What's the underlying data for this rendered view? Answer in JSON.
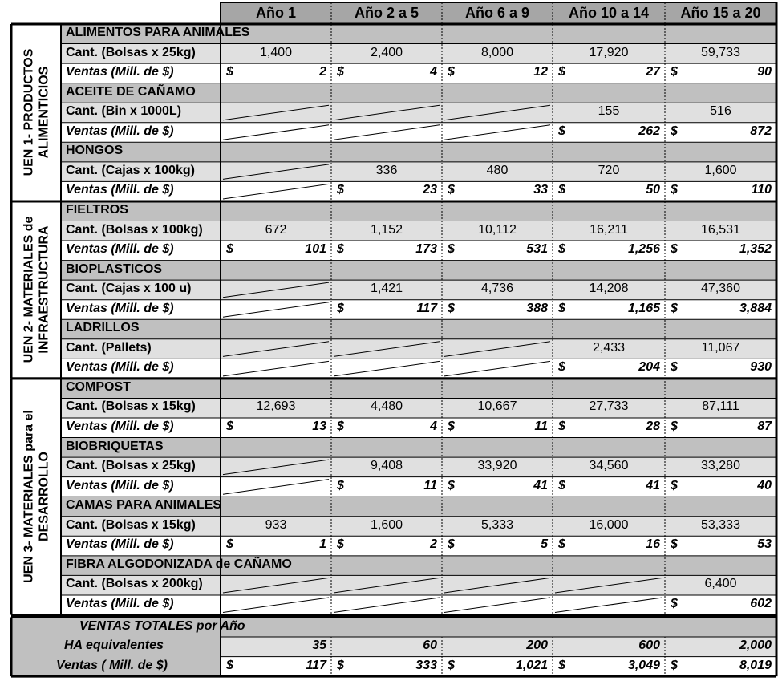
{
  "columns": [
    "Año 1",
    "Año 2 a 5",
    "Año 6 a 9",
    "Año 10 a 14",
    "Año 15 a 20"
  ],
  "currency_symbol": "$",
  "uens": [
    {
      "name_lines": [
        "UEN 1- PRODUCTOS",
        "ALIMENTICIOS"
      ],
      "products": [
        {
          "name": "ALIMENTOS PARA ANIMALES",
          "qty_label": "Cant. (Bolsas x 25kg)",
          "sales_label": "Ventas (Mill. de $)",
          "qty": [
            "1,400",
            "2,400",
            "8,000",
            "17,920",
            "59,733"
          ],
          "sales": [
            "2",
            "4",
            "12",
            "27",
            "90"
          ]
        },
        {
          "name": "ACEITE DE CAÑAMO",
          "qty_label": "Cant. (Bin x 1000L)",
          "sales_label": "Ventas (Mill. de $)",
          "qty": [
            null,
            null,
            null,
            "155",
            "516"
          ],
          "sales": [
            null,
            null,
            null,
            "262",
            "872"
          ]
        },
        {
          "name": "HONGOS",
          "qty_label": "Cant. (Cajas x 100kg)",
          "sales_label": "Ventas (Mill. de $)",
          "qty": [
            null,
            "336",
            "480",
            "720",
            "1,600"
          ],
          "sales": [
            null,
            "23",
            "33",
            "50",
            "110"
          ]
        }
      ]
    },
    {
      "name_lines": [
        "UEN 2- MATERIALES de",
        "INFRAESTRUCTURA"
      ],
      "products": [
        {
          "name": "FIELTROS",
          "qty_label": "Cant. (Bolsas x 100kg)",
          "sales_label": "Ventas (Mill. de $)",
          "qty": [
            "672",
            "1,152",
            "10,112",
            "16,211",
            "16,531"
          ],
          "sales": [
            "101",
            "173",
            "531",
            "1,256",
            "1,352"
          ]
        },
        {
          "name": "BIOPLASTICOS",
          "qty_label": "Cant. (Cajas x 100 u)",
          "sales_label": "Ventas (Mill. de $)",
          "qty": [
            null,
            "1,421",
            "4,736",
            "14,208",
            "47,360"
          ],
          "sales": [
            null,
            "117",
            "388",
            "1,165",
            "3,884"
          ]
        },
        {
          "name": "LADRILLOS",
          "qty_label": "Cant. (Pallets)",
          "sales_label": "Ventas (Mill. de $)",
          "qty": [
            null,
            null,
            null,
            "2,433",
            "11,067"
          ],
          "sales": [
            null,
            null,
            null,
            "204",
            "930"
          ]
        }
      ]
    },
    {
      "name_lines": [
        "UEN 3- MATERIALES para el",
        "DESARROLLO"
      ],
      "products": [
        {
          "name": "COMPOST",
          "qty_label": "Cant. (Bolsas x 15kg)",
          "sales_label": "Ventas (Mill. de $)",
          "qty": [
            "12,693",
            "4,480",
            "10,667",
            "27,733",
            "87,111"
          ],
          "sales": [
            "13",
            "4",
            "11",
            "28",
            "87"
          ]
        },
        {
          "name": "BIOBRIQUETAS",
          "qty_label": "Cant. (Bolsas x 25kg)",
          "sales_label": "Ventas (Mill. de $)",
          "qty": [
            null,
            "9,408",
            "33,920",
            "34,560",
            "33,280"
          ],
          "sales": [
            null,
            "11",
            "41",
            "41",
            "40"
          ]
        },
        {
          "name": "CAMAS PARA ANIMALES",
          "qty_label": "Cant. (Bolsas x 15kg)",
          "sales_label": "Ventas (Mill. de $)",
          "qty": [
            "933",
            "1,600",
            "5,333",
            "16,000",
            "53,333"
          ],
          "sales": [
            "1",
            "2",
            "5",
            "16",
            "53"
          ]
        },
        {
          "name": "FIBRA ALGODONIZADA de CAÑAMO",
          "qty_label": "Cant. (Bolsas x 200kg)",
          "sales_label": "Ventas (Mill. de $)",
          "qty": [
            null,
            null,
            null,
            null,
            "6,400"
          ],
          "sales": [
            null,
            null,
            null,
            null,
            "602"
          ]
        }
      ]
    }
  ],
  "totals": {
    "title": "VENTAS TOTALES por Año",
    "ha_label": "HA equivalentes",
    "ha": [
      "35",
      "60",
      "200",
      "600",
      "2,000"
    ],
    "sales_label": "Ventas ( Mill. de $)",
    "sales": [
      "117",
      "333",
      "1,021",
      "3,049",
      "8,019"
    ]
  },
  "colors": {
    "header_bg": "#a6a6a6",
    "section_bg": "#c0c0c0",
    "row_shade": "#e0e0e0",
    "border": "#000000"
  }
}
